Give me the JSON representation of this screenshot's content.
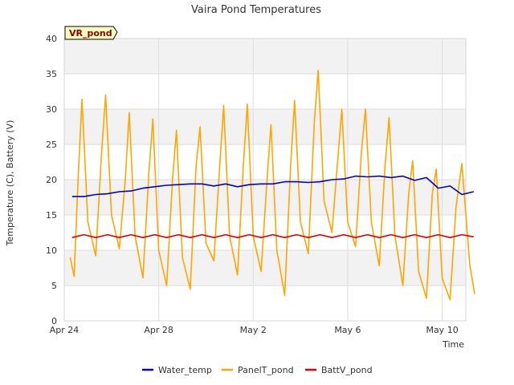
{
  "chart_data": {
    "type": "line",
    "title": "Vaira Pond Temperatures",
    "xlabel": "Time",
    "ylabel": "Temperature (C), Battery (V)",
    "site_label": "VR_pond",
    "x_domain": [
      "2024-04-24",
      "2024-05-11"
    ],
    "ylim": [
      0,
      40
    ],
    "yticks": [
      0,
      5,
      10,
      15,
      20,
      25,
      30,
      35,
      40
    ],
    "xticks": [
      {
        "date": "2024-04-24",
        "label": "Apr 24"
      },
      {
        "date": "2024-04-28",
        "label": "Apr 28"
      },
      {
        "date": "2024-05-02",
        "label": "May 2"
      },
      {
        "date": "2024-05-06",
        "label": "May 6"
      },
      {
        "date": "2024-05-10",
        "label": "May 10"
      }
    ],
    "grid": true,
    "legend_position": "bottom",
    "series": [
      {
        "name": "Water_temp",
        "color": "#0000cc",
        "points": [
          [
            "2024-04-24 08:00",
            17.6
          ],
          [
            "2024-04-24 20:00",
            17.6
          ],
          [
            "2024-04-25 08:00",
            17.9
          ],
          [
            "2024-04-25 20:00",
            18.0
          ],
          [
            "2024-04-26 08:00",
            18.3
          ],
          [
            "2024-04-26 20:00",
            18.4
          ],
          [
            "2024-04-27 08:00",
            18.8
          ],
          [
            "2024-04-27 20:00",
            19.0
          ],
          [
            "2024-04-28 08:00",
            19.2
          ],
          [
            "2024-04-28 20:00",
            19.3
          ],
          [
            "2024-04-29 08:00",
            19.4
          ],
          [
            "2024-04-29 20:00",
            19.4
          ],
          [
            "2024-04-30 08:00",
            19.1
          ],
          [
            "2024-04-30 20:00",
            19.4
          ],
          [
            "2024-05-01 08:00",
            19.0
          ],
          [
            "2024-05-01 20:00",
            19.3
          ],
          [
            "2024-05-02 08:00",
            19.4
          ],
          [
            "2024-05-02 20:00",
            19.4
          ],
          [
            "2024-05-03 08:00",
            19.7
          ],
          [
            "2024-05-03 20:00",
            19.7
          ],
          [
            "2024-05-04 08:00",
            19.6
          ],
          [
            "2024-05-04 20:00",
            19.7
          ],
          [
            "2024-05-05 08:00",
            20.0
          ],
          [
            "2024-05-05 20:00",
            20.1
          ],
          [
            "2024-05-06 08:00",
            20.5
          ],
          [
            "2024-05-06 20:00",
            20.4
          ],
          [
            "2024-05-07 08:00",
            20.5
          ],
          [
            "2024-05-07 20:00",
            20.3
          ],
          [
            "2024-05-08 08:00",
            20.5
          ],
          [
            "2024-05-08 20:00",
            19.9
          ],
          [
            "2024-05-09 08:00",
            20.3
          ],
          [
            "2024-05-09 20:00",
            18.8
          ],
          [
            "2024-05-10 08:00",
            19.1
          ],
          [
            "2024-05-10 20:00",
            17.9
          ],
          [
            "2024-05-11 08:00",
            18.3
          ]
        ]
      },
      {
        "name": "PanelT_pond",
        "color": "#ffa500",
        "points": [
          [
            "2024-04-24 06:00",
            9.0
          ],
          [
            "2024-04-24 10:00",
            6.3
          ],
          [
            "2024-04-24 14:00",
            20.0
          ],
          [
            "2024-04-24 18:00",
            31.4
          ],
          [
            "2024-04-25 00:00",
            14.0
          ],
          [
            "2024-04-25 08:00",
            9.2
          ],
          [
            "2024-04-25 14:00",
            24.0
          ],
          [
            "2024-04-25 18:00",
            32.0
          ],
          [
            "2024-04-26 00:00",
            15.0
          ],
          [
            "2024-04-26 08:00",
            10.2
          ],
          [
            "2024-04-26 14:00",
            20.0
          ],
          [
            "2024-04-26 18:00",
            29.5
          ],
          [
            "2024-04-27 00:00",
            12.0
          ],
          [
            "2024-04-27 08:00",
            6.1
          ],
          [
            "2024-04-27 14:00",
            21.0
          ],
          [
            "2024-04-27 18:00",
            28.6
          ],
          [
            "2024-04-28 00:00",
            10.0
          ],
          [
            "2024-04-28 08:00",
            5.0
          ],
          [
            "2024-04-28 14:00",
            20.0
          ],
          [
            "2024-04-28 18:00",
            27.0
          ],
          [
            "2024-04-29 00:00",
            9.0
          ],
          [
            "2024-04-29 08:00",
            4.5
          ],
          [
            "2024-04-29 14:00",
            22.0
          ],
          [
            "2024-04-29 18:00",
            27.5
          ],
          [
            "2024-04-30 00:00",
            11.0
          ],
          [
            "2024-04-30 08:00",
            8.5
          ],
          [
            "2024-04-30 14:00",
            22.0
          ],
          [
            "2024-04-30 18:00",
            30.5
          ],
          [
            "2024-05-01 00:00",
            12.0
          ],
          [
            "2024-05-01 08:00",
            6.5
          ],
          [
            "2024-05-01 14:00",
            22.0
          ],
          [
            "2024-05-01 18:00",
            30.7
          ],
          [
            "2024-05-02 00:00",
            12.0
          ],
          [
            "2024-05-02 08:00",
            7.0
          ],
          [
            "2024-05-02 14:00",
            20.0
          ],
          [
            "2024-05-02 18:00",
            27.8
          ],
          [
            "2024-05-03 00:00",
            10.0
          ],
          [
            "2024-05-03 08:00",
            3.6
          ],
          [
            "2024-05-03 14:00",
            22.0
          ],
          [
            "2024-05-03 18:00",
            31.2
          ],
          [
            "2024-05-04 00:00",
            14.0
          ],
          [
            "2024-05-04 08:00",
            9.5
          ],
          [
            "2024-05-04 14:00",
            28.0
          ],
          [
            "2024-05-04 18:00",
            35.5
          ],
          [
            "2024-05-05 00:00",
            17.0
          ],
          [
            "2024-05-05 08:00",
            12.5
          ],
          [
            "2024-05-05 14:00",
            23.0
          ],
          [
            "2024-05-05 18:00",
            30.0
          ],
          [
            "2024-05-06 00:00",
            14.0
          ],
          [
            "2024-05-06 08:00",
            10.5
          ],
          [
            "2024-05-06 14:00",
            24.0
          ],
          [
            "2024-05-06 18:00",
            30.0
          ],
          [
            "2024-05-07 00:00",
            14.0
          ],
          [
            "2024-05-07 08:00",
            7.8
          ],
          [
            "2024-05-07 14:00",
            22.0
          ],
          [
            "2024-05-07 18:00",
            28.8
          ],
          [
            "2024-05-08 00:00",
            12.0
          ],
          [
            "2024-05-08 08:00",
            5.0
          ],
          [
            "2024-05-08 14:00",
            18.0
          ],
          [
            "2024-05-08 18:00",
            22.7
          ],
          [
            "2024-05-09 00:00",
            7.0
          ],
          [
            "2024-05-09 08:00",
            3.2
          ],
          [
            "2024-05-09 14:00",
            18.0
          ],
          [
            "2024-05-09 18:00",
            21.5
          ],
          [
            "2024-05-10 00:00",
            6.0
          ],
          [
            "2024-05-10 08:00",
            3.0
          ],
          [
            "2024-05-10 14:00",
            16.0
          ],
          [
            "2024-05-10 20:00",
            22.3
          ],
          [
            "2024-05-11 04:00",
            8.0
          ],
          [
            "2024-05-11 09:00",
            3.8
          ]
        ]
      },
      {
        "name": "BattV_pond",
        "color": "#dd0000",
        "points": [
          [
            "2024-04-24 08:00",
            11.8
          ],
          [
            "2024-04-24 20:00",
            12.2
          ],
          [
            "2024-04-25 08:00",
            11.8
          ],
          [
            "2024-04-25 20:00",
            12.2
          ],
          [
            "2024-04-26 08:00",
            11.8
          ],
          [
            "2024-04-26 20:00",
            12.2
          ],
          [
            "2024-04-27 08:00",
            11.8
          ],
          [
            "2024-04-27 20:00",
            12.2
          ],
          [
            "2024-04-28 08:00",
            11.8
          ],
          [
            "2024-04-28 20:00",
            12.2
          ],
          [
            "2024-04-29 08:00",
            11.8
          ],
          [
            "2024-04-29 20:00",
            12.2
          ],
          [
            "2024-04-30 08:00",
            11.8
          ],
          [
            "2024-04-30 20:00",
            12.2
          ],
          [
            "2024-05-01 08:00",
            11.8
          ],
          [
            "2024-05-01 20:00",
            12.2
          ],
          [
            "2024-05-02 08:00",
            11.8
          ],
          [
            "2024-05-02 20:00",
            12.2
          ],
          [
            "2024-05-03 08:00",
            11.8
          ],
          [
            "2024-05-03 20:00",
            12.2
          ],
          [
            "2024-05-04 08:00",
            11.8
          ],
          [
            "2024-05-04 20:00",
            12.2
          ],
          [
            "2024-05-05 08:00",
            11.8
          ],
          [
            "2024-05-05 20:00",
            12.2
          ],
          [
            "2024-05-06 08:00",
            11.8
          ],
          [
            "2024-05-06 20:00",
            12.2
          ],
          [
            "2024-05-07 08:00",
            11.8
          ],
          [
            "2024-05-07 20:00",
            12.2
          ],
          [
            "2024-05-08 08:00",
            11.8
          ],
          [
            "2024-05-08 20:00",
            12.2
          ],
          [
            "2024-05-09 08:00",
            11.8
          ],
          [
            "2024-05-09 20:00",
            12.2
          ],
          [
            "2024-05-10 08:00",
            11.8
          ],
          [
            "2024-05-10 20:00",
            12.2
          ],
          [
            "2024-05-11 08:00",
            11.9
          ]
        ]
      }
    ]
  }
}
